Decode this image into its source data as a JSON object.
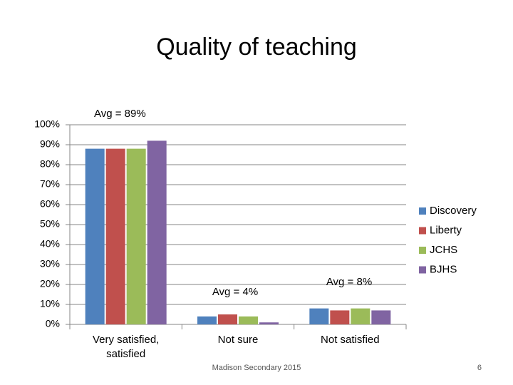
{
  "chart_data": {
    "type": "bar",
    "title": "Quality of teaching",
    "categories": [
      "Very satisfied, satisfied",
      "Not sure",
      "Not satisfied"
    ],
    "series": [
      {
        "name": "Discovery",
        "color": "#4f81bd",
        "values": [
          88,
          4,
          8
        ]
      },
      {
        "name": "Liberty",
        "color": "#c0504d",
        "values": [
          88,
          5,
          7
        ]
      },
      {
        "name": "JCHS",
        "color": "#9bbb59",
        "values": [
          88,
          4,
          8
        ]
      },
      {
        "name": "BJHS",
        "color": "#8064a2",
        "values": [
          92,
          1,
          7
        ]
      }
    ],
    "ylim": [
      0,
      100
    ],
    "yticks": [
      {
        "value": 0,
        "label": "0%"
      },
      {
        "value": 10,
        "label": "10%"
      },
      {
        "value": 20,
        "label": "20%"
      },
      {
        "value": 30,
        "label": "30%"
      },
      {
        "value": 40,
        "label": "40%"
      },
      {
        "value": 50,
        "label": "50%"
      },
      {
        "value": 60,
        "label": "60%"
      },
      {
        "value": 70,
        "label": "70%"
      },
      {
        "value": 80,
        "label": "80%"
      },
      {
        "value": 90,
        "label": "90%"
      },
      {
        "value": 100,
        "label": "100%"
      }
    ],
    "grid": true,
    "legend": "right",
    "annotations": [
      "Avg = 89%",
      "Avg = 4%",
      "Avg = 8%"
    ]
  },
  "footer": "Madison Secondary 2015",
  "slide_number": "6"
}
